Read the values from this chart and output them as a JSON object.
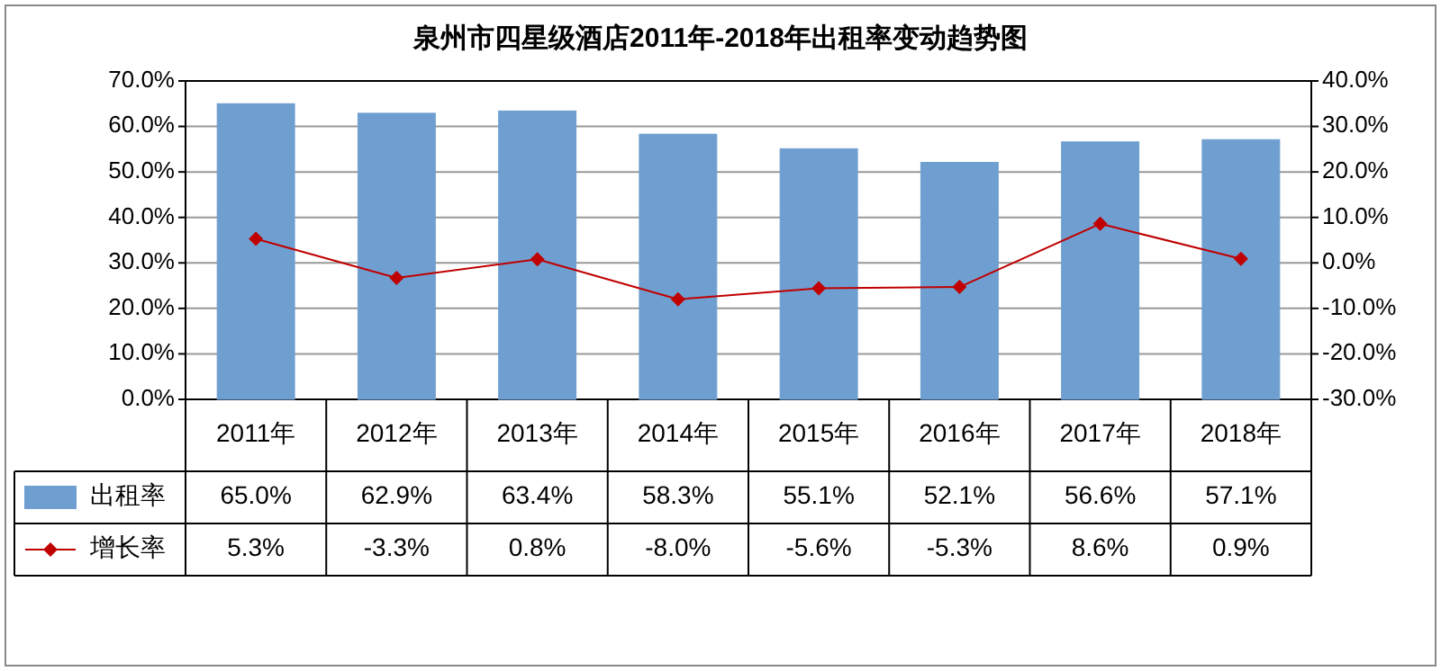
{
  "chart_data": {
    "type": "bar",
    "title": "泉州市四星级酒店2011年-2018年出租率变动趋势图",
    "categories": [
      "2011年",
      "2012年",
      "2013年",
      "2014年",
      "2015年",
      "2016年",
      "2017年",
      "2018年"
    ],
    "series": [
      {
        "name": "出租率",
        "color": "#6f9fd0",
        "values": [
          65.0,
          62.9,
          63.4,
          58.3,
          55.1,
          52.1,
          56.6,
          57.1
        ],
        "value_labels": [
          "65.0%",
          "62.9%",
          "63.4%",
          "58.3%",
          "55.1%",
          "52.1%",
          "56.6%",
          "57.1%"
        ]
      },
      {
        "name": "增长率",
        "type": "line",
        "axis": "y2",
        "color": "#c00000",
        "marker": "diamond",
        "values": [
          5.3,
          -3.3,
          0.8,
          -8.0,
          -5.6,
          -5.3,
          8.6,
          0.9
        ],
        "value_labels": [
          "5.3%",
          "-3.3%",
          "0.8%",
          "-8.0%",
          "-5.6%",
          "-5.3%",
          "8.6%",
          "0.9%"
        ]
      }
    ],
    "ylim": [
      0,
      70
    ],
    "yticks": [
      {
        "value": 0,
        "label": "0.0%"
      },
      {
        "value": 10,
        "label": "10.0%"
      },
      {
        "value": 20,
        "label": "20.0%"
      },
      {
        "value": 30,
        "label": "30.0%"
      },
      {
        "value": 40,
        "label": "40.0%"
      },
      {
        "value": 50,
        "label": "50.0%"
      },
      {
        "value": 60,
        "label": "60.0%"
      },
      {
        "value": 70,
        "label": "70.0%"
      }
    ],
    "y2lim": [
      -30,
      40
    ],
    "y2ticks": [
      {
        "value": -30,
        "label": "-30.0%"
      },
      {
        "value": -20,
        "label": "-20.0%"
      },
      {
        "value": -10,
        "label": "-10.0%"
      },
      {
        "value": 0,
        "label": "0.0%"
      },
      {
        "value": 10,
        "label": "10.0%"
      },
      {
        "value": 20,
        "label": "20.0%"
      },
      {
        "value": 30,
        "label": "30.0%"
      },
      {
        "value": 40,
        "label": "40.0%"
      }
    ],
    "grid": "y",
    "legend": "bottom"
  }
}
